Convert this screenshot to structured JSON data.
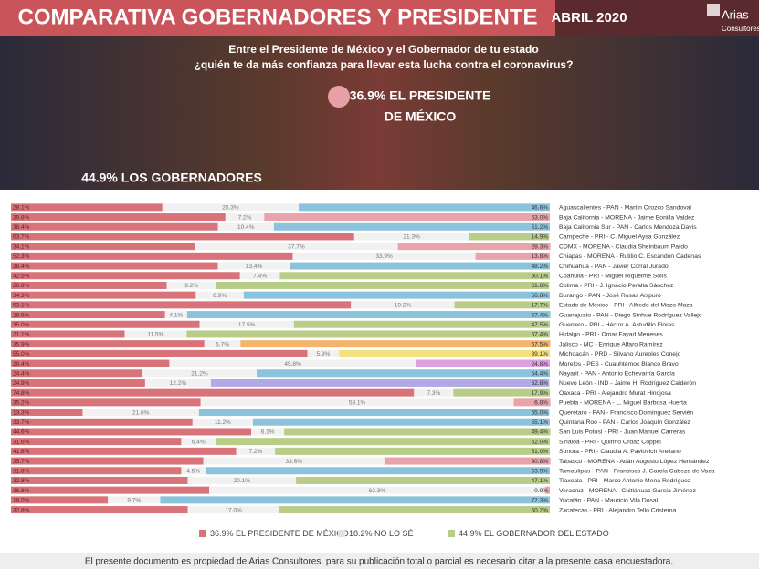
{
  "header": {
    "title": "COMPARATIVA GOBERNADORES Y PRESIDENTE",
    "date": "ABRIL 2020",
    "brand_name": "Arias",
    "brand_sub": "Consultores"
  },
  "question": [
    "Entre el Presidente de México y el Gobernador de tu estado",
    "¿quién te da más confianza para llevar esta lucha contra el coronavirus?"
  ],
  "callouts": {
    "president": [
      "36.9% EL PRESIDENTE",
      "DE MÉXICO"
    ],
    "governors": "44.9% LOS GOBERNADORES"
  },
  "footer": "El presente documento es propiedad de Arias Consultores, para su publicación total o parcial es necesario citar a la presente casa encuestadora.",
  "chart_data": {
    "type": "bar",
    "orientation": "horizontal",
    "stacked": true,
    "xlim": [
      0,
      100
    ],
    "categories": [
      "Aguascalientes - PAN - Martín Orozco Sandoval",
      "Baja California - MORENA - Jaime Bonilla Valdez",
      "Baja California Sur - PAN - Carlos Mendoza Davis",
      "Campeche - PRI - C. Miguel Aysa González",
      "CDMX - MORENA - Claudia Sheinbaum Pardo",
      "Chiapas - MORENA - Rutilio C. Escandón Cadenas",
      "Chihuahua - PAN - Javier Corral Jurado",
      "Coahuila - PRI - Miguel Riquelme Solís",
      "Colima - PRI - J. Ignacio Peralta Sánchez",
      "Durango - PAN - José Rosas Aispuro",
      "Estado de México - PRI - Alfredo del Mazo Maza",
      "Guanajuato - PAN - Diego Sinhue Rodríguez Vallejo",
      "Guerrero - PRI - Héctor A. Astudillo Flores",
      "Hidalgo - PRI - Omar Fayad Meneses",
      "Jalisco - MC - Enrique Alfaro Ramírez",
      "Michoacán - PRD - Silvano Aureoles Conejo",
      "Morelos - PES - Cuauhtémoc Blanco Bravo",
      "Nayarit - PAN - Antonio Echevarría García",
      "Nuevo León - IND - Jaime H. Rodríguez Calderón",
      "Oaxaca - PRI - Alejandro Murat Hinojosa",
      "Puebla - MORENA - L. Miguel Barbosa Huerta",
      "Querétaro - PAN - Francisco Domínguez Servién",
      "Quintana Roo - PAN - Carlos Joaquín González",
      "San Luis Potosí - PRI - Juan Manuel Carreras",
      "Sinaloa - PRI - Quirino Ordaz Coppel",
      "Sonora - PRI - Claudia A. Pavlovich Arellano",
      "Tabasco - MORENA - Adán Augusto López Hernández",
      "Tamaulipas - PAN - Francisco J. García Cabeza de Vaca",
      "Tlaxcala - PRI - Marco Antonio Mena Rodríguez",
      "Veracruz - MORENA - Cuitláhuac García Jiménez",
      "Yucatán - PAN - Mauricio Vila Dosal",
      "Zacatecas - PRI - Alejandro Tello Cristerna"
    ],
    "series": [
      {
        "name": "36.9% EL PRESIDENTE DE MÉXICO",
        "color": "#d9737a",
        "values": [
          28.1,
          39.8,
          38.4,
          63.7,
          34.1,
          52.3,
          38.4,
          42.5,
          28.9,
          34.3,
          63.1,
          28.6,
          35.0,
          21.1,
          35.9,
          55.0,
          29.4,
          24.4,
          24.9,
          74.8,
          35.2,
          13.3,
          33.7,
          44.6,
          31.6,
          41.8,
          35.7,
          31.6,
          32.8,
          36.8,
          18.0,
          32.8
        ],
        "value_labels": [
          "28.1%",
          "39.8%",
          "38.4%",
          "63.7%",
          "34.1%",
          "52.3%",
          "38.4%",
          "42.5%",
          "28.9%",
          "34.3%",
          "63.1%",
          "28.6%",
          "35.0%",
          "21.1%",
          "35.9%",
          "55.0%",
          "29.4%",
          "24.4%",
          "24.9%",
          "74.8%",
          "35.2%",
          "13.3%",
          "33.7%",
          "44.6%",
          "31.6%",
          "41.8%",
          "35.7%",
          "31.6%",
          "32.8%",
          "36.8%",
          "18.0%",
          "32.8%"
        ]
      },
      {
        "name": "18.2% NO LO SÉ",
        "color": "#f1f1f1",
        "values": [
          25.3,
          7.2,
          10.4,
          21.3,
          37.7,
          33.9,
          13.4,
          7.4,
          9.2,
          8.9,
          19.2,
          4.1,
          17.5,
          11.5,
          6.7,
          5.9,
          45.8,
          21.2,
          12.2,
          7.3,
          58.1,
          21.6,
          11.2,
          6.1,
          6.4,
          7.2,
          33.6,
          4.5,
          20.1,
          62.3,
          9.7,
          17.0
        ],
        "value_labels": [
          "25.3%",
          "7.2%",
          "10.4%",
          "21.3%",
          "37.7%",
          "33.9%",
          "13.4%",
          "7.4%",
          "9.2%",
          "8.9%",
          "19.2%",
          "4.1%",
          "17.5%",
          "11.5%",
          "6.7%",
          "5.9%",
          "45.8%",
          "21.2%",
          "12.2%",
          "7.3%",
          "58.1%",
          "21.6%",
          "11.2%",
          "6.1%",
          "6.4%",
          "7.2%",
          "33.6%",
          "4.5%",
          "20.1%",
          "62.3%",
          "9.7%",
          "17.0%"
        ]
      },
      {
        "name": "44.9% EL GOBERNADOR DEL ESTADO",
        "color": "#b8cd88",
        "colors": [
          "#8cc3dc",
          "#e9a3aa",
          "#8cc3dc",
          "#b8cd88",
          "#e9a3aa",
          "#e9a3aa",
          "#8cc3dc",
          "#b8cd88",
          "#b8cd88",
          "#8cc3dc",
          "#b8cd88",
          "#8cc3dc",
          "#b8cd88",
          "#b8cd88",
          "#f3b46c",
          "#f5e07e",
          "#dca0e3",
          "#8cc3dc",
          "#b3a9e4",
          "#b8cd88",
          "#e9a3aa",
          "#8cc3dc",
          "#8cc3dc",
          "#b8cd88",
          "#b8cd88",
          "#b8cd88",
          "#e9a3aa",
          "#8cc3dc",
          "#b8cd88",
          "#e9a3aa",
          "#8cc3dc",
          "#b8cd88"
        ],
        "values": [
          46.6,
          53.0,
          51.2,
          14.9,
          28.3,
          13.8,
          48.2,
          50.1,
          61.8,
          56.8,
          17.7,
          67.4,
          47.5,
          67.4,
          57.5,
          39.1,
          24.8,
          54.4,
          62.8,
          17.9,
          6.8,
          65.0,
          55.1,
          49.4,
          62.0,
          51.0,
          30.8,
          63.9,
          47.1,
          0.9,
          72.3,
          50.2
        ],
        "value_labels": [
          "46.6%",
          "53.0%",
          "51.2%",
          "14.9%",
          "28.3%",
          "13.8%",
          "48.2%",
          "50.1%",
          "61.8%",
          "56.8%",
          "17.7%",
          "67.4%",
          "47.5%",
          "67.4%",
          "57.5%",
          "39.1%",
          "24.8%",
          "54.4%",
          "62.8%",
          "17.9%",
          "6.8%",
          "65.0%",
          "55.1%",
          "49.4%",
          "62.0%",
          "51.0%",
          "30.8%",
          "63.9%",
          "47.1%",
          "0.9%",
          "72.3%",
          "50.2%"
        ]
      }
    ]
  }
}
